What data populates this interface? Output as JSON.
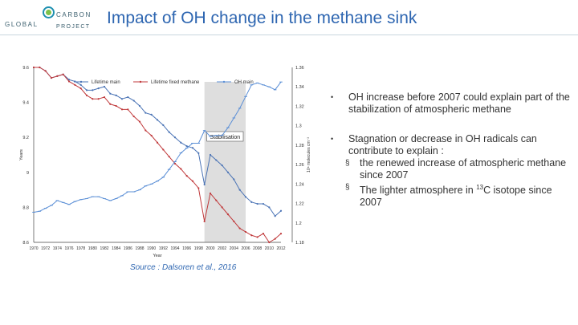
{
  "header": {
    "title": "Impact of OH change in the methane sink",
    "logo": {
      "line1": "GLOBAL",
      "line2": "CARBON",
      "line3": "PROJECT"
    }
  },
  "source": "Source : Dalsoren et al., 2016",
  "bullets": [
    {
      "text": "OH increase before 2007 could explain part of the stabilization of atmospheric methane",
      "subitems": []
    },
    {
      "text": "Stagnation or decrease in OH radicals can contribute to explain :",
      "subitems": [
        {
          "text": "the renewed increase of atmospheric methane since 2007"
        },
        {
          "text_before": "The lighter atmosphere in ",
          "sup": "13",
          "text_after": "C isotope since 2007"
        }
      ]
    }
  ],
  "chart_data": {
    "type": "line",
    "title": "",
    "xlabel": "Year",
    "ylabel_left": "Years",
    "ylabel_right": "10⁶ molecules cm⁻³",
    "categories": [
      "1970",
      "1972",
      "1974",
      "1976",
      "1978",
      "1980",
      "1982",
      "1984",
      "1986",
      "1988",
      "1990",
      "1992",
      "1994",
      "1996",
      "1998",
      "2000",
      "2002",
      "2004",
      "2006",
      "2008",
      "2010",
      "2012"
    ],
    "x": [
      1970,
      1971,
      1972,
      1973,
      1974,
      1975,
      1976,
      1977,
      1978,
      1979,
      1980,
      1981,
      1982,
      1983,
      1984,
      1985,
      1986,
      1987,
      1988,
      1989,
      1990,
      1991,
      1992,
      1993,
      1994,
      1995,
      1996,
      1997,
      1998,
      1999,
      2000,
      2001,
      2002,
      2003,
      2004,
      2005,
      2006,
      2007,
      2008,
      2009,
      2010,
      2011,
      2012
    ],
    "ylim_left": [
      8.6,
      9.6
    ],
    "yticks_left": [
      8.6,
      8.8,
      9.0,
      9.2,
      9.4,
      9.6
    ],
    "ytick_labels_left": [
      "8.6",
      "8.8",
      "9",
      "9.2",
      "9.4",
      "9.6"
    ],
    "ylim_right": [
      1.18,
      1.36
    ],
    "yticks_right": [
      1.18,
      1.2,
      1.22,
      1.24,
      1.26,
      1.28,
      1.3,
      1.32,
      1.34,
      1.36
    ],
    "ytick_labels_right": [
      "1.18",
      "1.2",
      "1.22",
      "1.24",
      "1.26",
      "1.28",
      "1.3",
      "1.32",
      "1.34",
      "1.36"
    ],
    "series": [
      {
        "name": "Lifetime main",
        "axis": "left",
        "color": "#4a73b5",
        "values": [
          9.6,
          9.6,
          9.58,
          9.54,
          9.55,
          9.56,
          9.53,
          9.52,
          9.5,
          9.47,
          9.47,
          9.48,
          9.49,
          9.45,
          9.44,
          9.42,
          9.43,
          9.41,
          9.38,
          9.34,
          9.33,
          9.3,
          9.27,
          9.23,
          9.2,
          9.17,
          9.15,
          9.14,
          9.11,
          8.93,
          9.1,
          9.07,
          9.04,
          9.0,
          8.96,
          8.9,
          8.86,
          8.83,
          8.82,
          8.82,
          8.8,
          8.75,
          8.78
        ]
      },
      {
        "name": "Lifetime fixed methane",
        "axis": "left",
        "color": "#c0393b",
        "values": [
          9.6,
          9.6,
          9.58,
          9.54,
          9.55,
          9.56,
          9.52,
          9.5,
          9.48,
          9.44,
          9.42,
          9.42,
          9.43,
          9.39,
          9.38,
          9.36,
          9.36,
          9.32,
          9.29,
          9.24,
          9.21,
          9.17,
          9.13,
          9.09,
          9.05,
          9.02,
          8.98,
          8.95,
          8.91,
          8.72,
          8.88,
          8.84,
          8.8,
          8.76,
          8.72,
          8.68,
          8.66,
          8.64,
          8.63,
          8.65,
          8.6,
          8.62,
          8.65
        ]
      },
      {
        "name": "OH main",
        "axis": "right",
        "color": "#5b8fd6",
        "values": [
          1.211,
          1.212,
          1.215,
          1.218,
          1.223,
          1.221,
          1.219,
          1.222,
          1.224,
          1.225,
          1.227,
          1.227,
          1.225,
          1.223,
          1.225,
          1.228,
          1.232,
          1.232,
          1.234,
          1.238,
          1.24,
          1.243,
          1.247,
          1.255,
          1.263,
          1.272,
          1.277,
          1.282,
          1.282,
          1.295,
          1.289,
          1.29,
          1.29,
          1.298,
          1.308,
          1.318,
          1.33,
          1.342,
          1.344,
          1.342,
          1.34,
          1.337,
          1.345
        ]
      }
    ],
    "shaded_region": {
      "label": "Stabilisation",
      "x_start": 1999,
      "x_end": 2006
    },
    "legend_position": "top"
  }
}
